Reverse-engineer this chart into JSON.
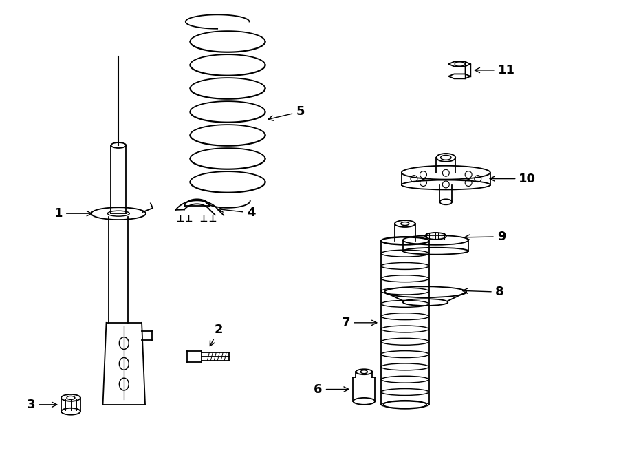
{
  "background_color": "#ffffff",
  "line_color": "#000000",
  "fig_width": 9.0,
  "fig_height": 6.61,
  "dpi": 100,
  "label_fontsize": 12
}
